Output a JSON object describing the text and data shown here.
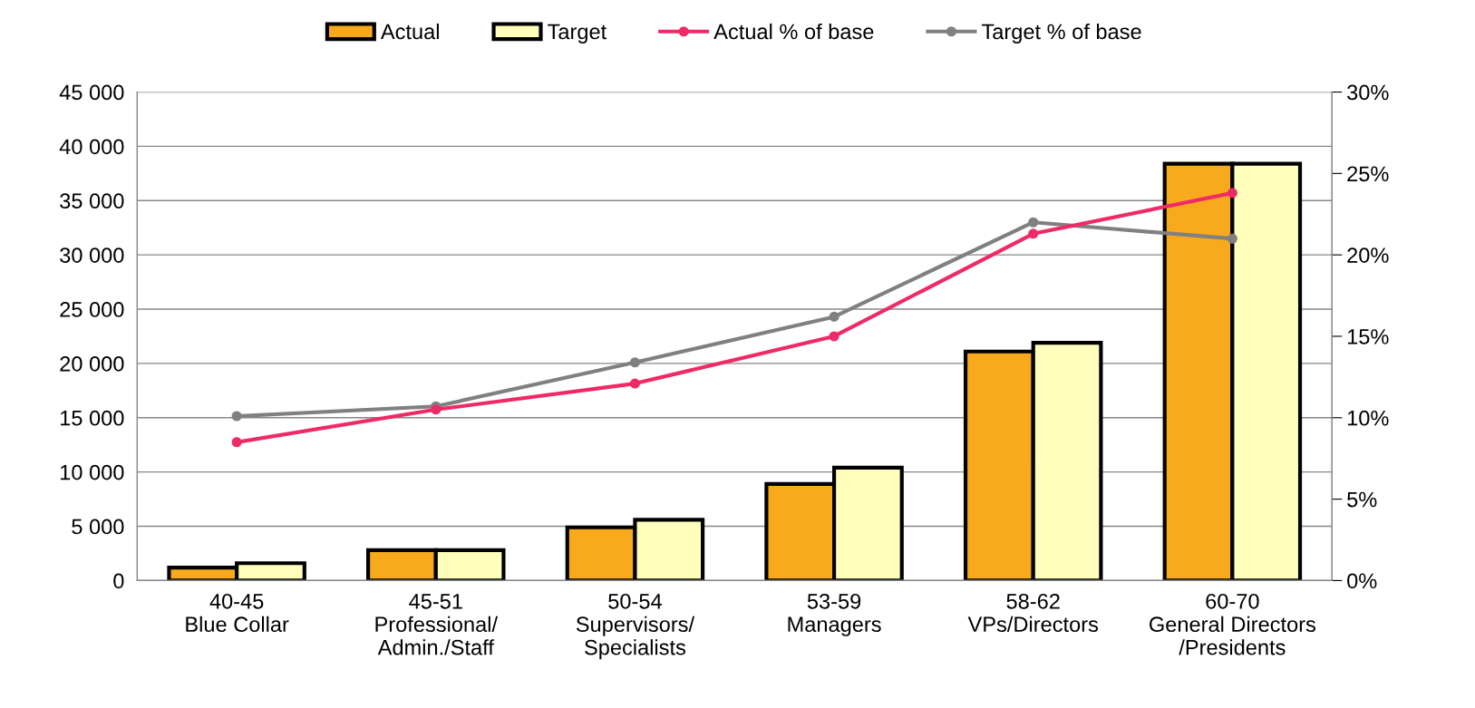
{
  "chart_data": {
    "type": "bar",
    "categories": [
      "40-45\nBlue Collar",
      "45-51\nProfessional/\nAdmin./Staff",
      "50-54\nSupervisors/\nSpecialists",
      "53-59\nManagers",
      "58-62\nVPs/Directors",
      "60-70\nGeneral Directors\n/Presidents"
    ],
    "series": [
      {
        "name": "Actual",
        "color": "#f9aa1c",
        "values": [
          1200,
          2800,
          4900,
          8900,
          21100,
          38400
        ]
      },
      {
        "name": "Target",
        "color": "#ffffbb",
        "values": [
          1600,
          2800,
          5600,
          10400,
          21900,
          38400
        ]
      },
      {
        "name": "Actual % of base",
        "type": "line",
        "axis": "y2",
        "color": "#ee2a67",
        "values": [
          8.5,
          10.5,
          12.1,
          15.0,
          21.3,
          23.8
        ]
      },
      {
        "name": "Target % of base",
        "type": "line",
        "axis": "y2",
        "color": "#808080",
        "values": [
          10.1,
          10.7,
          13.4,
          16.2,
          22.0,
          21.0
        ]
      }
    ],
    "ylim": [
      0,
      45000
    ],
    "yticks": [
      {
        "value": 0,
        "label": "0"
      },
      {
        "value": 5000,
        "label": "5 000"
      },
      {
        "value": 10000,
        "label": "10 000"
      },
      {
        "value": 15000,
        "label": "15 000"
      },
      {
        "value": 20000,
        "label": "20 000"
      },
      {
        "value": 25000,
        "label": "25 000"
      },
      {
        "value": 30000,
        "label": "30 000"
      },
      {
        "value": 35000,
        "label": "35 000"
      },
      {
        "value": 40000,
        "label": "40 000"
      },
      {
        "value": 45000,
        "label": "45 000"
      }
    ],
    "y2lim": [
      0,
      30
    ],
    "y2ticks": [
      {
        "value": 0,
        "label": "0%"
      },
      {
        "value": 5,
        "label": "5%"
      },
      {
        "value": 10,
        "label": "10%"
      },
      {
        "value": 15,
        "label": "15%"
      },
      {
        "value": 20,
        "label": "20%"
      },
      {
        "value": 25,
        "label": "25%"
      },
      {
        "value": 30,
        "label": "30%"
      }
    ],
    "grid": "y",
    "legend": "top",
    "marker": "circle",
    "line_style": "solid"
  }
}
